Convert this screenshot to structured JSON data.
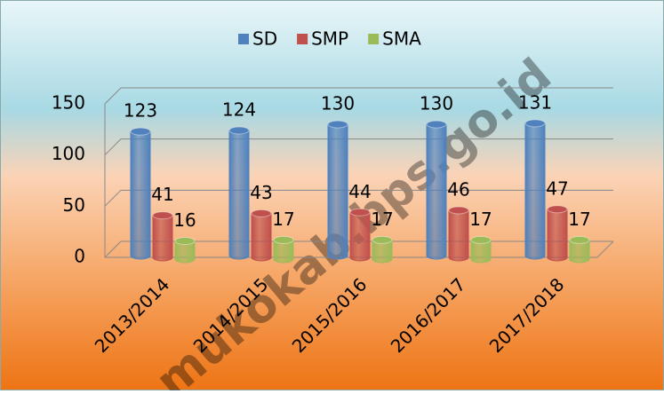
{
  "chart_data": {
    "type": "bar",
    "categories": [
      "2013/2014",
      "2014/2015",
      "2015/2016",
      "2016/2017",
      "2017/2018"
    ],
    "series": [
      {
        "name": "SD",
        "color": "#4f81bd",
        "values": [
          123,
          124,
          130,
          130,
          131
        ]
      },
      {
        "name": "SMP",
        "color": "#c0504d",
        "values": [
          41,
          43,
          44,
          46,
          47
        ]
      },
      {
        "name": "SMA",
        "color": "#9bbb59",
        "values": [
          16,
          17,
          17,
          17,
          17
        ]
      }
    ],
    "ylim": [
      0,
      150
    ],
    "yticks": [
      0,
      50,
      100,
      150
    ],
    "grid": true,
    "legend": "top",
    "watermark": "mukokab.bps.go.id"
  }
}
